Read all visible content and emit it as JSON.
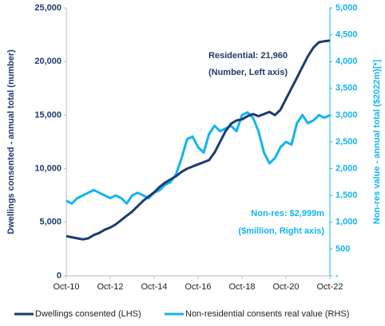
{
  "chart_data": {
    "type": "line",
    "y_label": "Dwellings consented - annual total (number)",
    "y2_label": "Non-res value - annual total ($2022m)[*]",
    "annotations": [
      "Residential: 21,960",
      "(Number, Left axis)",
      "Non-res: $2,999m",
      "($million, Right axis)"
    ],
    "categories": [
      "Oct-10",
      null,
      null,
      null,
      null,
      null,
      null,
      null,
      "Oct-12",
      null,
      null,
      null,
      null,
      null,
      null,
      null,
      "Oct-14",
      null,
      null,
      null,
      null,
      null,
      null,
      null,
      "Oct-16",
      null,
      null,
      null,
      null,
      null,
      null,
      null,
      "Oct-18",
      null,
      null,
      null,
      null,
      null,
      null,
      null,
      "Oct-20",
      null,
      null,
      null,
      null,
      null,
      null,
      null,
      "Oct-22"
    ],
    "series": [
      {
        "name": "Dwellings consented (LHS)",
        "color": "#1f3a6e",
        "values": [
          3700,
          3600,
          3500,
          3400,
          3500,
          3800,
          4000,
          4300,
          4500,
          4800,
          5200,
          5600,
          6000,
          6500,
          7000,
          7400,
          7800,
          8300,
          8700,
          9000,
          9300,
          9700,
          10000,
          10200,
          10400,
          10600,
          10800,
          11500,
          12500,
          13500,
          14200,
          14500,
          14600,
          14900,
          15100,
          14900,
          15100,
          15300,
          15000,
          15500,
          16500,
          17500,
          18500,
          19500,
          20500,
          21300,
          21800,
          21900,
          21960
        ]
      },
      {
        "name": "Non-residential consents real value (RHS)",
        "color": "#11b5ef",
        "axis": "y2",
        "values": [
          1400,
          1350,
          1450,
          1500,
          1550,
          1600,
          1550,
          1500,
          1450,
          1500,
          1450,
          1350,
          1500,
          1550,
          1500,
          1450,
          1550,
          1600,
          1700,
          1750,
          1900,
          2200,
          2550,
          2600,
          2400,
          2300,
          2650,
          2800,
          2700,
          2750,
          2800,
          2700,
          3000,
          3050,
          2950,
          2700,
          2300,
          2100,
          2200,
          2400,
          2500,
          2450,
          2850,
          3000,
          2850,
          2900,
          3000,
          2950,
          2999
        ]
      }
    ],
    "ylim": [
      0,
      25000
    ],
    "yticks": [
      0,
      {
        "value": 5000,
        "label": "5,000"
      },
      {
        "value": 10000,
        "label": "10,000"
      },
      {
        "value": 15000,
        "label": "15,000"
      },
      {
        "value": 20000,
        "label": "20,000"
      },
      {
        "value": 25000,
        "label": "25,000"
      }
    ],
    "y2lim": [
      0,
      5000
    ],
    "y2ticks": [
      {
        "value": 0,
        "label": "-"
      },
      500,
      {
        "value": 1000,
        "label": "1,000"
      },
      {
        "value": 1500,
        "label": "1,500"
      },
      {
        "value": 2000,
        "label": "2,000"
      },
      {
        "value": 2500,
        "label": "2,500"
      },
      {
        "value": 3000,
        "label": "3,000"
      },
      {
        "value": 3500,
        "label": "3,500"
      },
      {
        "value": 4000,
        "label": "4,000"
      },
      {
        "value": 4500,
        "label": "4,500"
      },
      {
        "value": 5000,
        "label": "5,000"
      }
    ],
    "legend": "bottom"
  }
}
